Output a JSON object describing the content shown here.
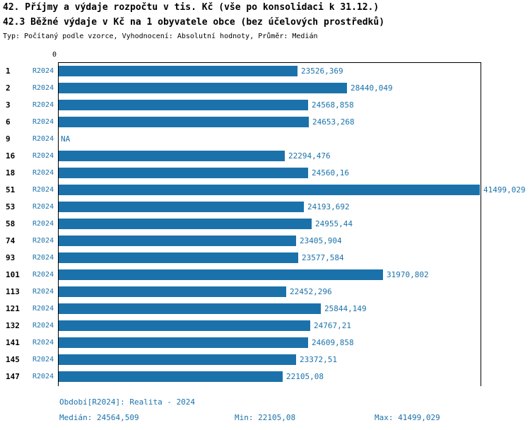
{
  "header": {
    "title_line1": "42. Příjmy a výdaje rozpočtu v tis. Kč (vše po konsolidaci k 31.12.)",
    "title_line2": "42.3 Běžné výdaje v Kč na 1 obyvatele obce (bez účelových prostředků)",
    "subtitle": "Typ: Počítaný podle vzorce, Vyhodnocení: Absolutní hodnoty, Průměr: Medián"
  },
  "axis": {
    "zero_label": "0"
  },
  "colors": {
    "bar": "#1b72ab",
    "blue_text": "#1b72ab",
    "id_text": "#000000"
  },
  "chart_data": {
    "type": "bar",
    "orientation": "horizontal",
    "title": "42.3 Běžné výdaje v Kč na 1 obyvatele obce (bez účelových prostředků)",
    "series_label": "R2024",
    "categories": [
      "1",
      "2",
      "3",
      "6",
      "9",
      "16",
      "18",
      "51",
      "53",
      "58",
      "74",
      "93",
      "101",
      "113",
      "121",
      "132",
      "141",
      "145",
      "147"
    ],
    "values": [
      23526.369,
      28440.049,
      24568.858,
      24653.268,
      null,
      22294.476,
      24560.16,
      41499.029,
      24193.692,
      24955.44,
      23405.904,
      23577.584,
      31970.802,
      22452.296,
      25844.149,
      24767.21,
      24609.858,
      23372.51,
      22105.08
    ],
    "value_labels": [
      "23526,369",
      "28440,049",
      "24568,858",
      "24653,268",
      "NA",
      "22294,476",
      "24560,16",
      "41499,029",
      "24193,692",
      "24955,44",
      "23405,904",
      "23577,584",
      "31970,802",
      "22452,296",
      "25844,149",
      "24767,21",
      "24609,858",
      "23372,51",
      "22105,08"
    ],
    "xlim": [
      0,
      41499.029
    ],
    "grid": false,
    "legend_position": "none"
  },
  "footer": {
    "period": "Období[R2024]: Realita - 2024",
    "median": "Medián: 24564,509",
    "min": "Min: 22105,08",
    "max": "Max: 41499,029"
  }
}
